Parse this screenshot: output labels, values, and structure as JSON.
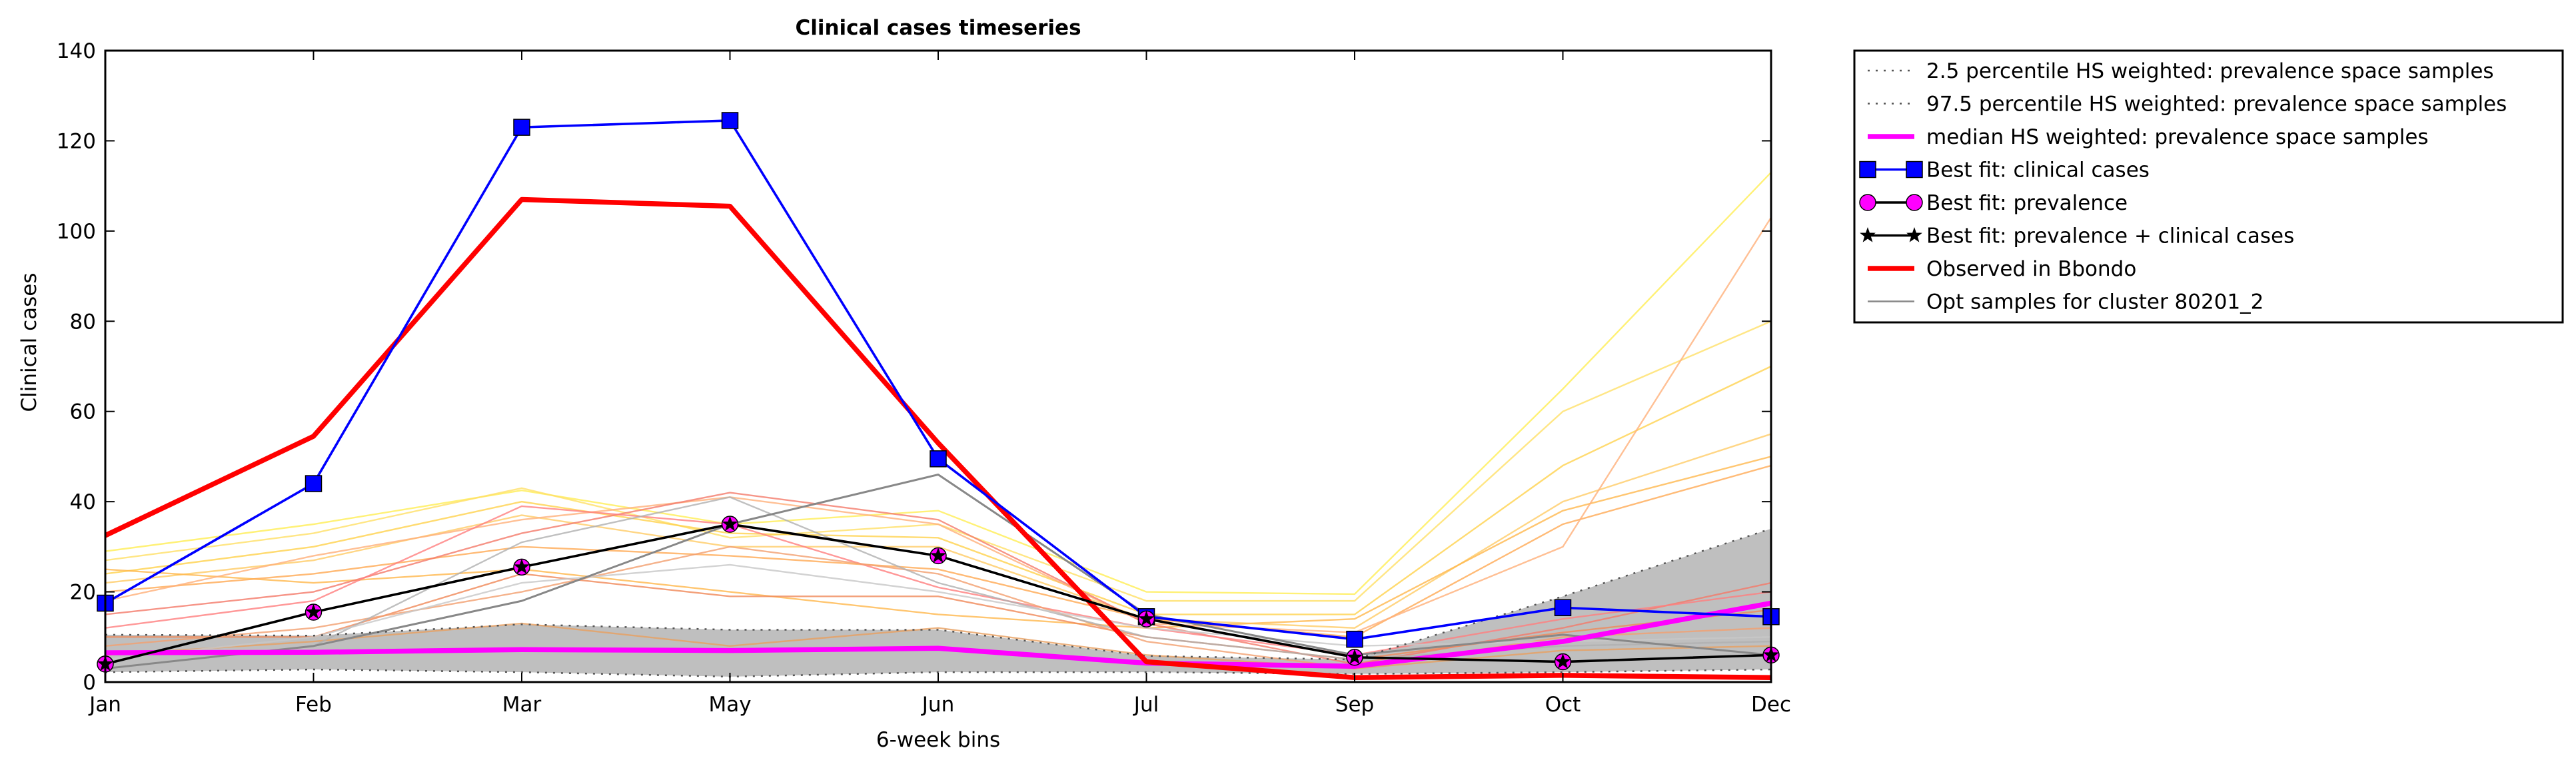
{
  "chart_data": {
    "type": "line",
    "title": "Clinical cases timeseries",
    "xlabel": "6-week bins",
    "ylabel": "Clinical cases",
    "categories": [
      "Jan",
      "Feb",
      "Mar",
      "May",
      "Jun",
      "Jul",
      "Sep",
      "Oct",
      "Dec"
    ],
    "ylim": [
      0,
      140
    ],
    "yticks": [
      0,
      20,
      40,
      60,
      80,
      100,
      120,
      140
    ],
    "grid": false,
    "legend_position": "outside-top-right",
    "band": {
      "lower": [
        2.2,
        2.8,
        2.2,
        1.2,
        2.2,
        2.2,
        1.8,
        2.2,
        2.8
      ],
      "upper": [
        10.5,
        10.3,
        12.8,
        11.6,
        11.6,
        5.8,
        5.0,
        19.0,
        34.0
      ],
      "color": "#bfbfbf"
    },
    "series": [
      {
        "name": "2.5 percentile HS weighted: prevalence space samples",
        "values": [
          2.2,
          2.8,
          2.2,
          1.2,
          2.2,
          2.2,
          1.8,
          2.2,
          2.8
        ],
        "color": "#555555",
        "style": "dotted",
        "marker": "none"
      },
      {
        "name": "97.5 percentile HS weighted: prevalence space samples",
        "values": [
          10.5,
          10.3,
          12.8,
          11.6,
          11.6,
          5.8,
          5.0,
          19.0,
          34.0
        ],
        "color": "#555555",
        "style": "dotted",
        "marker": "none"
      },
      {
        "name": "median HS weighted: prevalence space samples",
        "values": [
          6.5,
          6.6,
          7.2,
          7.0,
          7.5,
          4.2,
          3.5,
          9.0,
          17.5
        ],
        "color": "#ff00ff",
        "style": "solid",
        "marker": "none"
      },
      {
        "name": "Best fit: clinical cases",
        "values": [
          17.5,
          44.0,
          123.0,
          124.5,
          49.5,
          14.5,
          9.5,
          16.5,
          14.5
        ],
        "color": "#0000ff",
        "style": "solid",
        "marker": "square"
      },
      {
        "name": "Best fit: prevalence",
        "values": [
          4.0,
          15.5,
          25.5,
          35.0,
          28.0,
          14.0,
          5.5,
          4.5,
          6.0
        ],
        "color": "#ff00ff",
        "style": "none",
        "marker": "circle"
      },
      {
        "name": "Best fit: prevalence + clinical cases",
        "values": [
          4.0,
          15.5,
          25.5,
          35.0,
          28.0,
          14.0,
          5.5,
          4.5,
          6.0
        ],
        "color": "#000000",
        "style": "solid",
        "marker": "star"
      },
      {
        "name": "Observed in Bbondo",
        "values": [
          32.5,
          54.5,
          107.0,
          105.5,
          53.0,
          4.5,
          1.0,
          1.5,
          1.0
        ],
        "color": "#ff0000",
        "style": "solid",
        "marker": "none"
      },
      {
        "name": "Opt samples for cluster 80201_2",
        "values": [
          3.0,
          8.0,
          18.0,
          35.0,
          46.0,
          15.0,
          6.0,
          10.5,
          6.0
        ],
        "color": "#888888",
        "style": "solid",
        "marker": "none"
      }
    ],
    "sample_series": [
      {
        "values": [
          29,
          35,
          42.5,
          35,
          38,
          20,
          19.5,
          65,
          113
        ],
        "color": "#ffee55"
      },
      {
        "values": [
          27,
          33,
          43,
          32,
          35,
          18,
          18,
          60,
          80
        ],
        "color": "#ffe066"
      },
      {
        "values": [
          24,
          30,
          40,
          33,
          32,
          15,
          15,
          48,
          70
        ],
        "color": "#ffd24d"
      },
      {
        "values": [
          22,
          27,
          37,
          30,
          30,
          14,
          12,
          40,
          55
        ],
        "color": "#ffcc66"
      },
      {
        "values": [
          25,
          22,
          25,
          20,
          15,
          12,
          14,
          38,
          50
        ],
        "color": "#ffb84d"
      },
      {
        "values": [
          20,
          24,
          30,
          28,
          25,
          14,
          10,
          35,
          48
        ],
        "color": "#ffaa55"
      },
      {
        "values": [
          18,
          28,
          36,
          41,
          35,
          13,
          11,
          30,
          103
        ],
        "color": "#ffb07a"
      },
      {
        "values": [
          15,
          20,
          33,
          42,
          36,
          13,
          4,
          12,
          22
        ],
        "color": "#f47a6a"
      },
      {
        "values": [
          12,
          18,
          39,
          35,
          21,
          12,
          6,
          14,
          20
        ],
        "color": "#ff8080"
      },
      {
        "values": [
          10,
          10,
          24,
          19,
          19,
          10,
          5,
          11,
          16
        ],
        "color": "#f08a5a"
      },
      {
        "values": [
          8,
          12,
          20,
          30,
          24,
          9,
          3,
          10,
          12
        ],
        "color": "#f2a070"
      },
      {
        "values": [
          6,
          9,
          13,
          8,
          12,
          6,
          3,
          7,
          8
        ],
        "color": "#e8a060"
      },
      {
        "values": [
          3,
          8,
          31,
          41,
          22,
          10,
          5,
          8,
          9
        ],
        "color": "#b0b0b0"
      },
      {
        "values": [
          5,
          10,
          22,
          26,
          20,
          12,
          8,
          9,
          10
        ],
        "color": "#c8c8c8"
      }
    ]
  }
}
